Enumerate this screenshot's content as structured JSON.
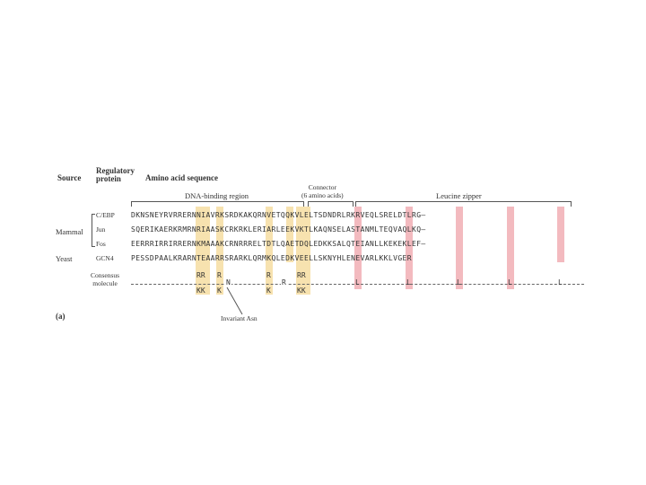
{
  "headers": {
    "source": "Source",
    "regulatory_protein": "Regulatory\nprotein",
    "amino_acid_sequence": "Amino acid sequence",
    "dna_binding_region": "DNA-binding region",
    "connector": "Connector\n(6 amino acids)",
    "leucine_zipper": "Leucine zipper"
  },
  "rows": [
    {
      "source": "",
      "protein": "C/EBP",
      "sequence": "DKNSNEYRVRRERNNIAVRKSRDKAKQRNVETQQKVLELTSDNDRLRKRVEQLSRELDTLRG–"
    },
    {
      "source": "Mammal",
      "protein": "Jun",
      "sequence": "SQERIKAERKRMRNRIAASKCRKRKLERIARLEEKVKTLKAQNSELASTANMLTEQVAQLKQ–"
    },
    {
      "source": "",
      "protein": "Fos",
      "sequence": "EERRRIRRIRRERNKMAAAKCRNRRRELTDTLQAETDQLEDKKSALQTEIANLLKEKEKLEF–"
    },
    {
      "source": "Yeast",
      "protein": "GCN4",
      "sequence": "PESSDPAALKRARNTEAARRSRARKLQRMKQLEDKVEELLSKNYHLENEVARLKKLVGER"
    }
  ],
  "consensus": {
    "label": "Consensus\nmolecule",
    "top": [
      "RR",
      "R",
      "R",
      "RR"
    ],
    "bottom": [
      "KK",
      "K",
      "K",
      "KK"
    ],
    "mid": [
      "N",
      "R"
    ],
    "leucines": [
      "L",
      "L",
      "L",
      "L",
      "L"
    ]
  },
  "invariant_label": "Invariant Asn",
  "panel_label": "(a)"
}
